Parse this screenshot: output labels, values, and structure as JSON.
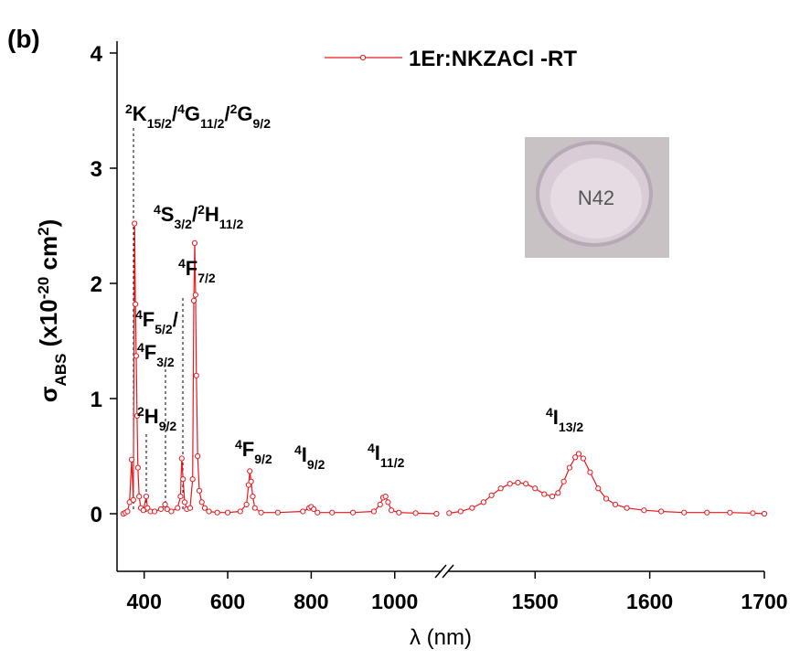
{
  "chart_data": {
    "type": "line",
    "panel_label": "(b)",
    "ylim": [
      -0.5,
      4
    ],
    "yticks": [
      0,
      1,
      2,
      3,
      4
    ],
    "x_segments": [
      {
        "xlim": [
          335,
          1110
        ],
        "xticks": [
          400,
          600,
          800,
          1000
        ]
      },
      {
        "xlim": [
          1424,
          1700
        ],
        "xticks": [
          1500,
          1600,
          1700
        ]
      }
    ],
    "x_label": "λ (nm)",
    "y_label": [
      {
        "text": "σ",
        "style": "normal"
      },
      {
        "text": "ABS",
        "style": "sub"
      },
      {
        "text": " (x10",
        "style": "normal"
      },
      {
        "text": "-20",
        "style": "sup"
      },
      {
        "text": " cm",
        "style": "normal"
      },
      {
        "text": "2",
        "style": "sup"
      },
      {
        "text": ")",
        "style": "normal"
      }
    ],
    "inset_text": "N42",
    "series": [
      {
        "name": "1Er:NKZACl -RT",
        "color": "#e8191e",
        "x": [
          350,
          355,
          360,
          365,
          370,
          374,
          377,
          379,
          381,
          383,
          385,
          388,
          392,
          398,
          405,
          408,
          415,
          425,
          440,
          450,
          455,
          465,
          480,
          487,
          490,
          493,
          497,
          502,
          510,
          516,
          519,
          521,
          523,
          525,
          528,
          532,
          538,
          545,
          555,
          575,
          600,
          630,
          645,
          650,
          653,
          656,
          660,
          665,
          680,
          720,
          780,
          795,
          800,
          806,
          815,
          850,
          900,
          950,
          965,
          972,
          978,
          984,
          992,
          1010,
          1050,
          1100,
          1425,
          1435,
          1445,
          1455,
          1462,
          1470,
          1478,
          1485,
          1492,
          1500,
          1508,
          1515,
          1520,
          1525,
          1530,
          1535,
          1538,
          1542,
          1548,
          1555,
          1562,
          1570,
          1580,
          1595,
          1610,
          1630,
          1650,
          1670,
          1690,
          1700
        ],
        "values": [
          0,
          0.01,
          0.02,
          0.1,
          0.47,
          0.12,
          2.52,
          1.82,
          1.37,
          0.85,
          0.4,
          0.15,
          0.05,
          0.03,
          0.15,
          0.05,
          0.02,
          0.02,
          0.04,
          0.08,
          0.04,
          0.02,
          0.05,
          0.15,
          0.48,
          0.3,
          0.1,
          0.04,
          0.05,
          0.3,
          1.85,
          2.35,
          1.9,
          1.2,
          0.5,
          0.2,
          0.1,
          0.05,
          0.02,
          0.01,
          0.01,
          0.02,
          0.08,
          0.25,
          0.37,
          0.28,
          0.15,
          0.05,
          0.01,
          0.01,
          0.02,
          0.05,
          0.06,
          0.04,
          0.01,
          0.01,
          0.01,
          0.02,
          0.08,
          0.14,
          0.15,
          0.1,
          0.03,
          0.01,
          0.005,
          0,
          0.005,
          0.02,
          0.05,
          0.1,
          0.16,
          0.22,
          0.26,
          0.27,
          0.26,
          0.22,
          0.17,
          0.15,
          0.18,
          0.28,
          0.4,
          0.49,
          0.52,
          0.48,
          0.36,
          0.22,
          0.13,
          0.08,
          0.05,
          0.03,
          0.02,
          0.01,
          0.01,
          0.01,
          0.005,
          0
        ]
      }
    ],
    "annotations": [
      {
        "parts": [
          {
            "text": "2",
            "style": "sup"
          },
          {
            "text": "K",
            "style": "normal"
          },
          {
            "text": "15/2",
            "style": "sub"
          },
          {
            "text": "/",
            "style": "normal"
          },
          {
            "text": "4",
            "style": "sup"
          },
          {
            "text": "G",
            "style": "normal"
          },
          {
            "text": "11/2",
            "style": "sub"
          },
          {
            "text": "/",
            "style": "normal"
          },
          {
            "text": "2",
            "style": "sup"
          },
          {
            "text": "G",
            "style": "normal"
          },
          {
            "text": "9/2",
            "style": "sub"
          }
        ]
      },
      {
        "parts": [
          {
            "text": "4",
            "style": "sup"
          },
          {
            "text": "S",
            "style": "normal"
          },
          {
            "text": "3/2",
            "style": "sub"
          },
          {
            "text": "/",
            "style": "normal"
          },
          {
            "text": "2",
            "style": "sup"
          },
          {
            "text": "H",
            "style": "normal"
          },
          {
            "text": "11/2",
            "style": "sub"
          }
        ]
      },
      {
        "parts": [
          {
            "text": "4",
            "style": "sup"
          },
          {
            "text": "F",
            "style": "normal"
          },
          {
            "text": "7/2",
            "style": "sub"
          }
        ]
      },
      {
        "parts": [
          {
            "text": "4",
            "style": "sup"
          },
          {
            "text": "F",
            "style": "normal"
          },
          {
            "text": "5/2",
            "style": "sub"
          },
          {
            "text": "/",
            "style": "normal"
          }
        ]
      },
      {
        "parts": [
          {
            "text": "4",
            "style": "sup"
          },
          {
            "text": "F",
            "style": "normal"
          },
          {
            "text": "3/2",
            "style": "sub"
          }
        ]
      },
      {
        "parts": [
          {
            "text": "2",
            "style": "sup"
          },
          {
            "text": "H",
            "style": "normal"
          },
          {
            "text": "9/2",
            "style": "sub"
          }
        ]
      },
      {
        "parts": [
          {
            "text": "4",
            "style": "sup"
          },
          {
            "text": "F",
            "style": "normal"
          },
          {
            "text": "9/2",
            "style": "sub"
          }
        ]
      },
      {
        "parts": [
          {
            "text": "4",
            "style": "sup"
          },
          {
            "text": "I",
            "style": "normal"
          },
          {
            "text": "9/2",
            "style": "sub"
          }
        ]
      },
      {
        "parts": [
          {
            "text": "4",
            "style": "sup"
          },
          {
            "text": "I",
            "style": "normal"
          },
          {
            "text": "11/2",
            "style": "sub"
          }
        ]
      },
      {
        "parts": [
          {
            "text": "4",
            "style": "sup"
          },
          {
            "text": "I",
            "style": "normal"
          },
          {
            "text": "13/2",
            "style": "sub"
          }
        ]
      }
    ]
  }
}
